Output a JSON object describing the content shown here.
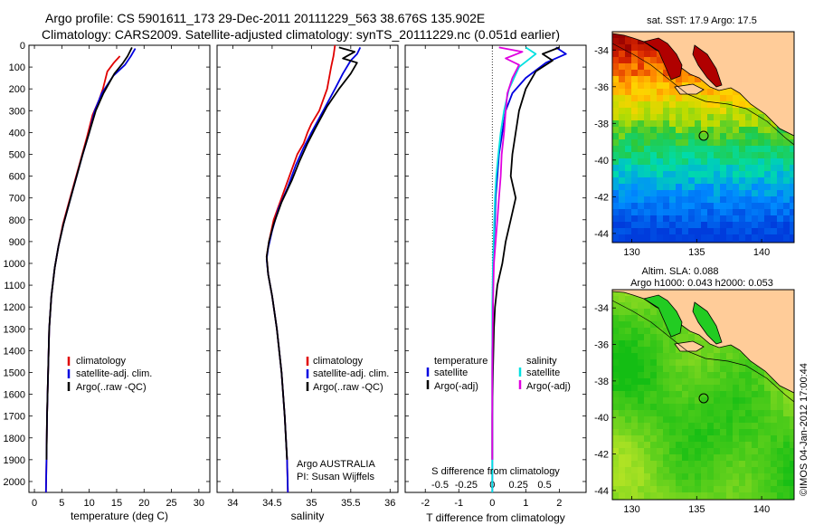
{
  "header": {
    "line1": "Argo profile: CS 5901611_173 29-Dec-2011 20111229_563 38.676S 135.902E",
    "line2": "Climatology: CARS2009. Satellite-adjusted climatology: synTS_20111229.nc (0.051d earlier)"
  },
  "colors": {
    "climatology": "#e00000",
    "satellite": "#0000e0",
    "argo": "#000000",
    "satellite_s": "#00e0e0",
    "argo_s": "#e000e0"
  },
  "chart_data": [
    {
      "type": "line",
      "name": "temperature-profile",
      "xlabel": "temperature (deg C)",
      "xticks": [
        0,
        5,
        10,
        15,
        20,
        25,
        30
      ],
      "xlim": [
        -1,
        32
      ],
      "ylim": [
        0,
        2050
      ],
      "yticks": [
        0,
        100,
        200,
        300,
        400,
        500,
        600,
        700,
        800,
        900,
        1000,
        1100,
        1200,
        1300,
        1400,
        1500,
        1600,
        1700,
        1800,
        1900,
        2000
      ],
      "legend": [
        "climatology",
        "satellite-adj. clim.",
        "Argo(..raw -QC)"
      ],
      "series": [
        {
          "name": "climatology",
          "color": "#e00000",
          "points": [
            [
              15.6,
              50
            ],
            [
              14.5,
              80
            ],
            [
              13.3,
              120
            ],
            [
              12.5,
              200
            ],
            [
              11.8,
              250
            ],
            [
              10.6,
              320
            ],
            [
              9.6,
              420
            ],
            [
              8.5,
              520
            ],
            [
              7.4,
              620
            ],
            [
              6.3,
              720
            ],
            [
              5.2,
              820
            ],
            [
              4.4,
              920
            ],
            [
              3.7,
              1020
            ],
            [
              3.1,
              1150
            ],
            [
              2.7,
              1300
            ],
            [
              2.5,
              1500
            ],
            [
              2.3,
              1700
            ],
            [
              2.2,
              1900
            ],
            [
              2.1,
              2050
            ]
          ]
        },
        {
          "name": "satellite-adj. clim.",
          "color": "#0000e0",
          "points": [
            [
              18.4,
              15
            ],
            [
              17.6,
              50
            ],
            [
              16.5,
              90
            ],
            [
              14.4,
              140
            ],
            [
              12.3,
              220
            ],
            [
              11.0,
              300
            ],
            [
              10.0,
              400
            ],
            [
              8.7,
              510
            ],
            [
              7.6,
              610
            ],
            [
              6.4,
              720
            ],
            [
              5.3,
              820
            ],
            [
              4.4,
              920
            ],
            [
              3.7,
              1020
            ],
            [
              3.1,
              1150
            ],
            [
              2.7,
              1300
            ],
            [
              2.5,
              1500
            ],
            [
              2.3,
              1700
            ],
            [
              2.2,
              1900
            ],
            [
              2.1,
              2050
            ]
          ]
        },
        {
          "name": "Argo(..raw -QC)",
          "color": "#000000",
          "points": [
            [
              17.8,
              10
            ],
            [
              17.0,
              50
            ],
            [
              16.2,
              80
            ],
            [
              14.6,
              130
            ],
            [
              12.6,
              220
            ],
            [
              11.2,
              300
            ],
            [
              10.0,
              400
            ],
            [
              8.8,
              500
            ],
            [
              7.6,
              610
            ],
            [
              6.4,
              720
            ],
            [
              5.3,
              820
            ],
            [
              4.4,
              920
            ],
            [
              3.7,
              1020
            ],
            [
              3.1,
              1150
            ],
            [
              2.7,
              1300
            ],
            [
              2.5,
              1500
            ],
            [
              2.3,
              1700
            ],
            [
              2.2,
              1900
            ]
          ]
        }
      ]
    },
    {
      "type": "line",
      "name": "salinity-profile",
      "xlabel": "salinity",
      "xticks": [
        34,
        34.5,
        35,
        35.5,
        36
      ],
      "xlim": [
        33.8,
        36.1
      ],
      "ylim": [
        0,
        2050
      ],
      "legend": [
        "climatology",
        "satellite-adj. clim.",
        "Argo(..raw -QC)"
      ],
      "series": [
        {
          "name": "climatology",
          "color": "#e00000",
          "points": [
            [
              35.3,
              0
            ],
            [
              35.28,
              50
            ],
            [
              35.25,
              100
            ],
            [
              35.2,
              200
            ],
            [
              35.1,
              300
            ],
            [
              35.0,
              360
            ],
            [
              34.95,
              400
            ],
            [
              34.9,
              450
            ],
            [
              34.82,
              500
            ],
            [
              34.72,
              600
            ],
            [
              34.62,
              700
            ],
            [
              34.52,
              800
            ],
            [
              34.46,
              900
            ],
            [
              34.43,
              970
            ],
            [
              34.45,
              1050
            ],
            [
              34.5,
              1150
            ],
            [
              34.56,
              1300
            ],
            [
              34.62,
              1500
            ],
            [
              34.66,
              1700
            ],
            [
              34.69,
              1900
            ],
            [
              34.7,
              2050
            ]
          ]
        },
        {
          "name": "satellite-adj. clim.",
          "color": "#0000e0",
          "points": [
            [
              35.62,
              10
            ],
            [
              35.58,
              40
            ],
            [
              35.5,
              70
            ],
            [
              35.4,
              130
            ],
            [
              35.3,
              200
            ],
            [
              35.15,
              300
            ],
            [
              35.0,
              400
            ],
            [
              34.9,
              470
            ],
            [
              34.8,
              550
            ],
            [
              34.7,
              650
            ],
            [
              34.58,
              750
            ],
            [
              34.5,
              850
            ],
            [
              34.45,
              930
            ],
            [
              34.43,
              980
            ],
            [
              34.45,
              1050
            ],
            [
              34.5,
              1150
            ],
            [
              34.56,
              1300
            ],
            [
              34.62,
              1500
            ],
            [
              34.66,
              1700
            ],
            [
              34.69,
              1900
            ],
            [
              34.7,
              2050
            ]
          ]
        },
        {
          "name": "Argo(..raw -QC)",
          "color": "#000000",
          "points": [
            [
              35.35,
              10
            ],
            [
              35.55,
              30
            ],
            [
              35.4,
              60
            ],
            [
              35.58,
              80
            ],
            [
              35.5,
              130
            ],
            [
              35.35,
              200
            ],
            [
              35.2,
              280
            ],
            [
              35.05,
              380
            ],
            [
              34.95,
              450
            ],
            [
              34.85,
              530
            ],
            [
              34.75,
              620
            ],
            [
              34.62,
              720
            ],
            [
              34.52,
              820
            ],
            [
              34.46,
              900
            ],
            [
              34.43,
              970
            ],
            [
              34.45,
              1050
            ],
            [
              34.5,
              1150
            ],
            [
              34.56,
              1300
            ],
            [
              34.62,
              1500
            ],
            [
              34.66,
              1700
            ],
            [
              34.69,
              1900
            ]
          ]
        }
      ]
    },
    {
      "type": "line",
      "name": "difference-profile",
      "xlabel": "T difference from climatology",
      "xlabel_top": "S difference from climatology",
      "xticks": [
        -2,
        -1,
        0,
        1,
        2
      ],
      "xticks_s": [
        "-0.5",
        "-0.25",
        "0",
        "0.25",
        "0.5"
      ],
      "xlim": [
        -2.6,
        2.8
      ],
      "ylim": [
        0,
        2050
      ],
      "legend_left_title": "temperature",
      "legend_right_title": "salinity",
      "legend": [
        "satellite",
        "Argo(-adj)"
      ],
      "series": [
        {
          "name": "satellite",
          "group": "temperature",
          "color": "#0000e0",
          "points": [
            [
              1.9,
              10
            ],
            [
              2.2,
              40
            ],
            [
              1.6,
              80
            ],
            [
              1.0,
              150
            ],
            [
              0.6,
              220
            ],
            [
              0.4,
              300
            ],
            [
              0.3,
              400
            ],
            [
              0.2,
              500
            ],
            [
              0.15,
              600
            ],
            [
              0.1,
              700
            ],
            [
              0.08,
              800
            ],
            [
              0.05,
              900
            ],
            [
              0.03,
              1000
            ],
            [
              0.02,
              1200
            ],
            [
              0.0,
              1400
            ],
            [
              0.0,
              1700
            ],
            [
              0.0,
              2050
            ]
          ]
        },
        {
          "name": "Argo(-adj)",
          "group": "temperature",
          "color": "#000000",
          "points": [
            [
              2.0,
              10
            ],
            [
              1.5,
              40
            ],
            [
              1.8,
              70
            ],
            [
              1.3,
              120
            ],
            [
              1.0,
              200
            ],
            [
              0.8,
              300
            ],
            [
              0.7,
              400
            ],
            [
              0.6,
              500
            ],
            [
              0.55,
              600
            ],
            [
              0.7,
              700
            ],
            [
              0.55,
              800
            ],
            [
              0.4,
              900
            ],
            [
              0.3,
              1000
            ],
            [
              0.15,
              1100
            ],
            [
              0.08,
              1200
            ],
            [
              0.05,
              1300
            ],
            [
              0.02,
              1500
            ],
            [
              0.0,
              1700
            ],
            [
              0.0,
              1900
            ]
          ]
        },
        {
          "name": "satellite",
          "group": "salinity",
          "color": "#00e0e0",
          "points": [
            [
              1.0,
              10
            ],
            [
              1.3,
              40
            ],
            [
              0.8,
              100
            ],
            [
              0.5,
              200
            ],
            [
              0.35,
              300
            ],
            [
              0.25,
              400
            ],
            [
              0.18,
              500
            ],
            [
              0.12,
              600
            ],
            [
              0.08,
              700
            ],
            [
              0.06,
              800
            ],
            [
              0.04,
              900
            ],
            [
              0.02,
              1000
            ],
            [
              0.0,
              1200
            ],
            [
              0.0,
              1500
            ],
            [
              0.0,
              2050
            ]
          ]
        },
        {
          "name": "Argo(-adj)",
          "group": "salinity",
          "color": "#e000e0",
          "points": [
            [
              0.2,
              10
            ],
            [
              0.9,
              30
            ],
            [
              0.4,
              60
            ],
            [
              0.8,
              90
            ],
            [
              0.6,
              150
            ],
            [
              0.45,
              220
            ],
            [
              0.4,
              300
            ],
            [
              0.35,
              400
            ],
            [
              0.28,
              500
            ],
            [
              0.25,
              600
            ],
            [
              0.2,
              700
            ],
            [
              0.15,
              800
            ],
            [
              0.1,
              900
            ],
            [
              0.05,
              1000
            ],
            [
              0.02,
              1200
            ],
            [
              0.0,
              1500
            ],
            [
              0.0,
              1900
            ]
          ]
        }
      ]
    }
  ],
  "maps": {
    "sst": {
      "title": "sat. SST: 17.9 Argo: 17.5",
      "xticks": [
        "130",
        "135",
        "140"
      ],
      "yticks": [
        "-34",
        "-36",
        "-38",
        "-40",
        "-42",
        "-44"
      ]
    },
    "sla": {
      "title_line1": "Altim. SLA: 0.088",
      "title_line2": "Argo h1000: 0.043 h2000: 0.053",
      "xticks": [
        "130",
        "135",
        "140"
      ],
      "yticks": [
        "-34",
        "-36",
        "-38",
        "-40",
        "-42",
        "-44"
      ]
    }
  },
  "annotations": {
    "float_country": "Argo AUSTRALIA",
    "pi": "PI: Susan Wijffels",
    "credit": "©IMOS 04-Jan-2012 17:00:44"
  }
}
